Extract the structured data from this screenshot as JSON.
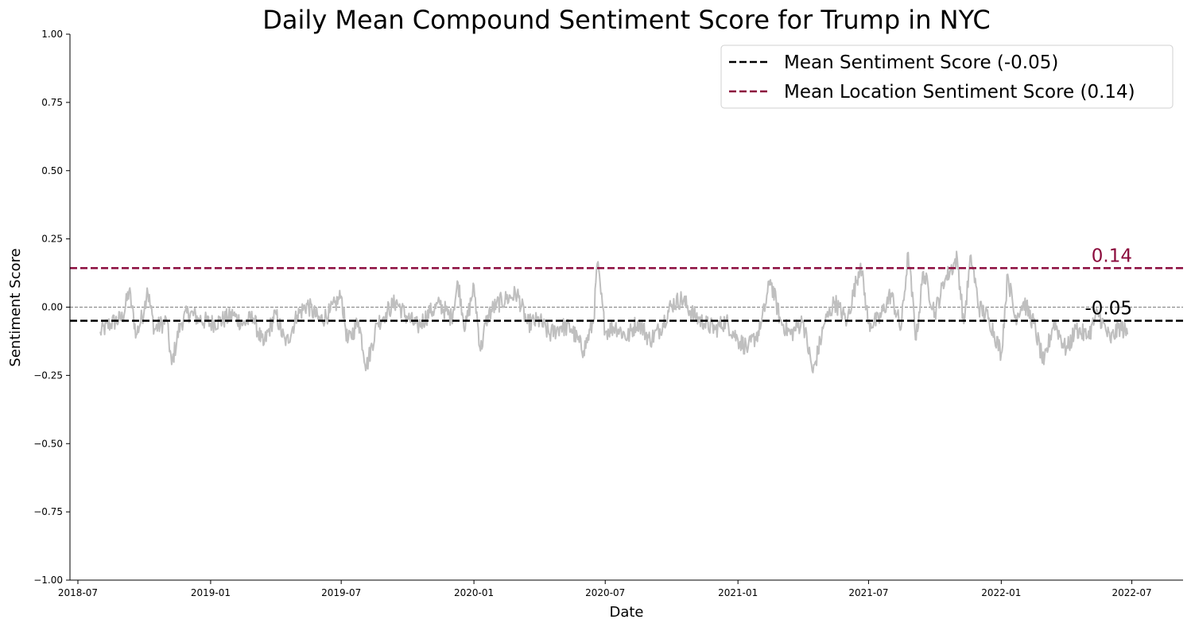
{
  "chart_data": {
    "type": "line",
    "title": "Daily Mean Compound Sentiment Score for Trump in NYC",
    "xlabel": "Date",
    "ylabel": "Sentiment Score",
    "ylim": [
      -1.0,
      1.0
    ],
    "xlim": [
      "2018-06-20",
      "2022-09-10"
    ],
    "y_ticks": [
      -1.0,
      -0.75,
      -0.5,
      -0.25,
      0.0,
      0.25,
      0.5,
      0.75,
      1.0
    ],
    "y_tick_labels": [
      "−1.00",
      "−0.75",
      "−0.50",
      "−0.25",
      "0.00",
      "0.25",
      "0.50",
      "0.75",
      "1.00"
    ],
    "x_ticks": [
      "2018-07-01",
      "2019-01-01",
      "2019-07-01",
      "2020-01-01",
      "2020-07-01",
      "2021-01-01",
      "2021-07-01",
      "2022-01-01",
      "2022-07-01"
    ],
    "x_tick_labels": [
      "2018-07",
      "2019-01",
      "2019-07",
      "2020-01",
      "2020-07",
      "2021-01",
      "2021-07",
      "2022-01",
      "2022-07"
    ],
    "grid": false,
    "legend_position": "top-right",
    "zero_line": 0.0,
    "reference_lines": [
      {
        "name": "Mean Sentiment Score (-0.05)",
        "value": -0.05,
        "color": "#000000",
        "annotation": "-0.05"
      },
      {
        "name": "Mean Location Sentiment Score (0.14)",
        "value": 0.143,
        "color": "#8b0a3c",
        "annotation": "0.14"
      }
    ],
    "series": [
      {
        "color": "#bfbfbf",
        "points": [
          [
            "2018-08-01",
            -0.09
          ],
          [
            "2018-08-15",
            -0.06
          ],
          [
            "2018-09-01",
            -0.04
          ],
          [
            "2018-09-10",
            0.06
          ],
          [
            "2018-09-20",
            -0.1
          ],
          [
            "2018-10-01",
            -0.01
          ],
          [
            "2018-10-05",
            0.07
          ],
          [
            "2018-10-15",
            -0.08
          ],
          [
            "2018-11-01",
            -0.05
          ],
          [
            "2018-11-08",
            -0.21
          ],
          [
            "2018-11-20",
            -0.06
          ],
          [
            "2018-12-01",
            -0.02
          ],
          [
            "2018-12-15",
            -0.04
          ],
          [
            "2019-01-01",
            -0.06
          ],
          [
            "2019-01-15",
            -0.05
          ],
          [
            "2019-02-01",
            -0.03
          ],
          [
            "2019-02-15",
            -0.06
          ],
          [
            "2019-03-01",
            -0.04
          ],
          [
            "2019-03-15",
            -0.14
          ],
          [
            "2019-04-01",
            -0.02
          ],
          [
            "2019-04-15",
            -0.14
          ],
          [
            "2019-05-01",
            -0.03
          ],
          [
            "2019-05-15",
            0.01
          ],
          [
            "2019-06-01",
            -0.05
          ],
          [
            "2019-06-15",
            -0.02
          ],
          [
            "2019-07-01",
            0.04
          ],
          [
            "2019-07-10",
            -0.13
          ],
          [
            "2019-07-25",
            -0.05
          ],
          [
            "2019-08-05",
            -0.22
          ],
          [
            "2019-08-20",
            -0.06
          ],
          [
            "2019-09-01",
            -0.02
          ],
          [
            "2019-09-15",
            0.02
          ],
          [
            "2019-10-01",
            -0.04
          ],
          [
            "2019-10-15",
            -0.07
          ],
          [
            "2019-11-01",
            -0.02
          ],
          [
            "2019-11-15",
            0.01
          ],
          [
            "2019-12-01",
            -0.04
          ],
          [
            "2019-12-10",
            0.09
          ],
          [
            "2019-12-20",
            -0.08
          ],
          [
            "2020-01-01",
            0.08
          ],
          [
            "2020-01-10",
            -0.16
          ],
          [
            "2020-01-20",
            -0.03
          ],
          [
            "2020-02-01",
            0.01
          ],
          [
            "2020-02-15",
            0.03
          ],
          [
            "2020-03-01",
            0.05
          ],
          [
            "2020-03-15",
            -0.06
          ],
          [
            "2020-04-01",
            -0.05
          ],
          [
            "2020-04-15",
            -0.1
          ],
          [
            "2020-05-01",
            -0.07
          ],
          [
            "2020-05-15",
            -0.08
          ],
          [
            "2020-06-01",
            -0.16
          ],
          [
            "2020-06-15",
            -0.05
          ],
          [
            "2020-06-20",
            0.16
          ],
          [
            "2020-07-01",
            -0.09
          ],
          [
            "2020-07-15",
            -0.07
          ],
          [
            "2020-08-01",
            -0.11
          ],
          [
            "2020-08-15",
            -0.05
          ],
          [
            "2020-09-01",
            -0.12
          ],
          [
            "2020-09-15",
            -0.08
          ],
          [
            "2020-10-01",
            0.01
          ],
          [
            "2020-10-15",
            0.03
          ],
          [
            "2020-11-01",
            -0.03
          ],
          [
            "2020-11-15",
            -0.06
          ],
          [
            "2020-12-01",
            -0.08
          ],
          [
            "2020-12-15",
            -0.05
          ],
          [
            "2021-01-01",
            -0.12
          ],
          [
            "2021-01-15",
            -0.15
          ],
          [
            "2021-02-01",
            -0.08
          ],
          [
            "2021-02-15",
            0.1
          ],
          [
            "2021-03-01",
            -0.05
          ],
          [
            "2021-03-15",
            -0.1
          ],
          [
            "2021-04-01",
            -0.05
          ],
          [
            "2021-04-15",
            -0.24
          ],
          [
            "2021-05-01",
            -0.06
          ],
          [
            "2021-05-15",
            0.02
          ],
          [
            "2021-06-01",
            -0.05
          ],
          [
            "2021-06-20",
            0.16
          ],
          [
            "2021-07-01",
            -0.06
          ],
          [
            "2021-07-15",
            -0.05
          ],
          [
            "2021-08-01",
            0.05
          ],
          [
            "2021-08-15",
            -0.08
          ],
          [
            "2021-08-25",
            0.2
          ],
          [
            "2021-09-05",
            -0.12
          ],
          [
            "2021-09-15",
            0.13
          ],
          [
            "2021-10-01",
            -0.02
          ],
          [
            "2021-10-15",
            0.1
          ],
          [
            "2021-11-01",
            0.18
          ],
          [
            "2021-11-10",
            -0.06
          ],
          [
            "2021-11-20",
            0.19
          ],
          [
            "2021-12-01",
            0.0
          ],
          [
            "2021-12-15",
            -0.04
          ],
          [
            "2022-01-01",
            -0.17
          ],
          [
            "2022-01-10",
            0.12
          ],
          [
            "2022-01-20",
            -0.04
          ],
          [
            "2022-02-01",
            0.02
          ],
          [
            "2022-02-15",
            -0.06
          ],
          [
            "2022-03-01",
            -0.21
          ],
          [
            "2022-03-15",
            -0.05
          ],
          [
            "2022-04-01",
            -0.16
          ],
          [
            "2022-04-15",
            -0.08
          ],
          [
            "2022-05-01",
            -0.11
          ],
          [
            "2022-05-15",
            -0.02
          ],
          [
            "2022-06-01",
            -0.12
          ],
          [
            "2022-06-15",
            -0.07
          ],
          [
            "2022-06-25",
            -0.1
          ]
        ]
      }
    ]
  }
}
